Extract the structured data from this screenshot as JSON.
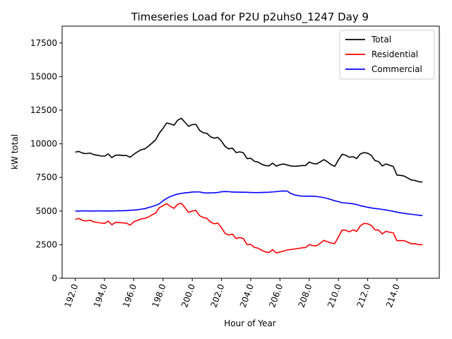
{
  "chart_data": {
    "type": "line",
    "title": "Timeseries Load for P2U p2uhs0_1247  Day 9",
    "xlabel": "Hour of Year",
    "ylabel": "kW total",
    "xlim": [
      191.1,
      216.9
    ],
    "ylim": [
      0,
      18750
    ],
    "xticks": [
      192,
      194,
      196,
      198,
      200,
      202,
      204,
      206,
      208,
      210,
      212,
      214
    ],
    "xtick_labels": [
      "192.0",
      "194.0",
      "196.0",
      "198.0",
      "200.0",
      "202.0",
      "204.0",
      "206.0",
      "208.0",
      "210.0",
      "212.0",
      "214.0"
    ],
    "yticks": [
      0,
      2500,
      5000,
      7500,
      10000,
      12500,
      15000,
      17500
    ],
    "ytick_labels": [
      "0",
      "2500",
      "5000",
      "7500",
      "10000",
      "12500",
      "15000",
      "17500"
    ],
    "legend_position": "top-right",
    "grid": false,
    "x_start": 192,
    "x_step": 0.25,
    "series": [
      {
        "name": "Total",
        "color": "#000000",
        "values": [
          9380,
          9430,
          9300,
          9270,
          9310,
          9200,
          9150,
          9100,
          9080,
          9250,
          8980,
          9150,
          9160,
          9130,
          9130,
          9000,
          9220,
          9400,
          9560,
          9620,
          9820,
          10050,
          10300,
          10800,
          11150,
          11550,
          11480,
          11380,
          11750,
          11900,
          11600,
          11300,
          11420,
          11450,
          11000,
          10820,
          10780,
          10520,
          10420,
          10480,
          10200,
          9800,
          9620,
          9680,
          9350,
          9400,
          9330,
          8900,
          8920,
          8700,
          8640,
          8480,
          8380,
          8360,
          8560,
          8340,
          8450,
          8500,
          8420,
          8350,
          8330,
          8350,
          8380,
          8380,
          8640,
          8540,
          8500,
          8650,
          8820,
          8660,
          8450,
          8320,
          8800,
          9220,
          9150,
          9000,
          9040,
          8900,
          9250,
          9350,
          9300,
          9130,
          8750,
          8680,
          8350,
          8500,
          8400,
          8320,
          7680,
          7650,
          7600,
          7450,
          7300,
          7270,
          7180,
          7150
        ]
      },
      {
        "name": "Residential",
        "color": "#ff0000",
        "values": [
          4380,
          4450,
          4300,
          4260,
          4320,
          4200,
          4150,
          4110,
          4080,
          4250,
          3980,
          4150,
          4140,
          4120,
          4100,
          3950,
          4200,
          4300,
          4420,
          4450,
          4550,
          4720,
          4850,
          5250,
          5400,
          5550,
          5350,
          5200,
          5500,
          5580,
          5250,
          4900,
          5000,
          5050,
          4650,
          4520,
          4460,
          4180,
          4050,
          4100,
          3750,
          3330,
          3220,
          3280,
          2950,
          3030,
          2950,
          2500,
          2520,
          2300,
          2240,
          2080,
          1960,
          1920,
          2130,
          1880,
          1950,
          2020,
          2100,
          2140,
          2180,
          2220,
          2260,
          2280,
          2500,
          2430,
          2410,
          2600,
          2820,
          2720,
          2620,
          2580,
          3080,
          3580,
          3570,
          3450,
          3600,
          3480,
          3900,
          4080,
          4050,
          3930,
          3600,
          3580,
          3300,
          3500,
          3420,
          3380,
          2800,
          2800,
          2800,
          2680,
          2560,
          2570,
          2500,
          2500
        ]
      },
      {
        "name": "Commercial",
        "color": "#0000ff",
        "values": [
          5000,
          5000,
          5010,
          5010,
          5000,
          5000,
          5010,
          5010,
          5000,
          5010,
          5000,
          5010,
          5020,
          5020,
          5030,
          5060,
          5070,
          5090,
          5140,
          5170,
          5260,
          5330,
          5420,
          5540,
          5760,
          5940,
          6080,
          6180,
          6260,
          6310,
          6350,
          6380,
          6410,
          6420,
          6420,
          6360,
          6340,
          6350,
          6360,
          6380,
          6430,
          6450,
          6440,
          6410,
          6410,
          6400,
          6400,
          6390,
          6380,
          6370,
          6370,
          6380,
          6390,
          6400,
          6420,
          6440,
          6480,
          6490,
          6480,
          6300,
          6200,
          6150,
          6110,
          6100,
          6100,
          6100,
          6080,
          6040,
          6000,
          5930,
          5850,
          5760,
          5700,
          5620,
          5600,
          5570,
          5540,
          5480,
          5400,
          5340,
          5280,
          5230,
          5190,
          5160,
          5120,
          5080,
          5030,
          4980,
          4920,
          4870,
          4830,
          4790,
          4760,
          4720,
          4690,
          4660
        ]
      }
    ]
  }
}
